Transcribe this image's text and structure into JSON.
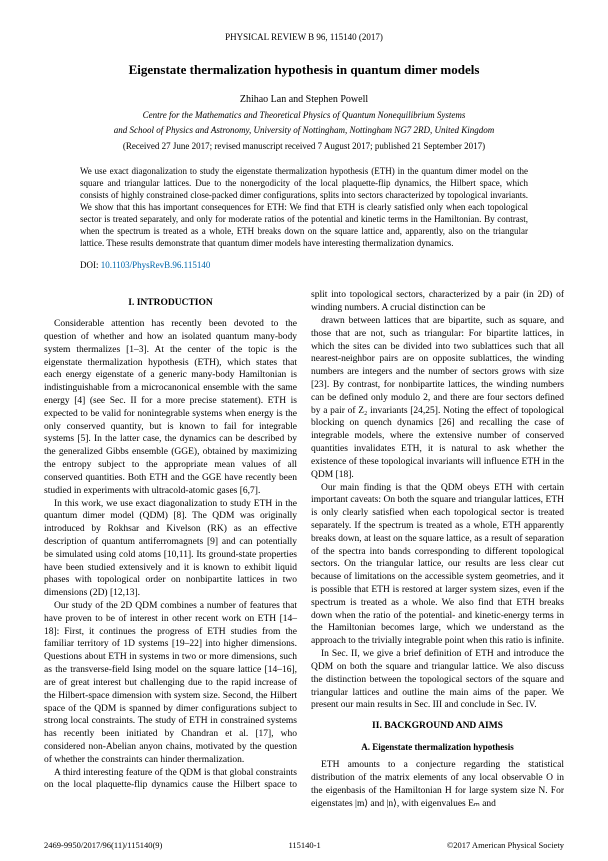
{
  "journal_header": "PHYSICAL REVIEW B 96, 115140 (2017)",
  "title": "Eigenstate thermalization hypothesis in quantum dimer models",
  "authors": "Zhihao Lan and Stephen Powell",
  "affiliation_line1": "Centre for the Mathematics and Theoretical Physics of Quantum Nonequilibrium Systems",
  "affiliation_line2": "and School of Physics and Astronomy, University of Nottingham, Nottingham NG7 2RD, United Kingdom",
  "dates": "(Received 27 June 2017; revised manuscript received 7 August 2017; published 21 September 2017)",
  "abstract": "We use exact diagonalization to study the eigenstate thermalization hypothesis (ETH) in the quantum dimer model on the square and triangular lattices. Due to the nonergodicity of the local plaquette-flip dynamics, the Hilbert space, which consists of highly constrained close-packed dimer configurations, splits into sectors characterized by topological invariants. We show that this has important consequences for ETH: We find that ETH is clearly satisfied only when each topological sector is treated separately, and only for moderate ratios of the potential and kinetic terms in the Hamiltonian. By contrast, when the spectrum is treated as a whole, ETH breaks down on the square lattice and, apparently, also on the triangular lattice. These results demonstrate that quantum dimer models have interesting thermalization dynamics.",
  "doi_label": "DOI:",
  "doi_link": "10.1103/PhysRevB.96.115140",
  "section1_head": "I. INTRODUCTION",
  "para1": "Considerable attention has recently been devoted to the question of whether and how an isolated quantum many-body system thermalizes [1–3]. At the center of the topic is the eigenstate thermalization hypothesis (ETH), which states that each energy eigenstate of a generic many-body Hamiltonian is indistinguishable from a microcanonical ensemble with the same energy [4] (see Sec. II for a more precise statement). ETH is expected to be valid for nonintegrable systems when energy is the only conserved quantity, but is known to fail for integrable systems [5]. In the latter case, the dynamics can be described by the generalized Gibbs ensemble (GGE), obtained by maximizing the entropy subject to the appropriate mean values of all conserved quantities. Both ETH and the GGE have recently been studied in experiments with ultracold-atomic gases [6,7].",
  "para2": "In this work, we use exact diagonalization to study ETH in the quantum dimer model (QDM) [8]. The QDM was originally introduced by Rokhsar and Kivelson (RK) as an effective description of quantum antiferromagnets [9] and can potentially be simulated using cold atoms [10,11]. Its ground-state properties have been studied extensively and it is known to exhibit liquid phases with topological order on nonbipartite lattices in two dimensions (2D) [12,13].",
  "para3": "Our study of the 2D QDM combines a number of features that have proven to be of interest in other recent work on ETH [14–18]: First, it continues the progress of ETH studies from the familiar territory of 1D systems [19–22] into higher dimensions. Questions about ETH in systems in two or more dimensions, such as the transverse-field Ising model on the square lattice [14–16], are of great interest but challenging due to the rapid increase of the Hilbert-space dimension with system size. Second, the Hilbert space of the QDM is spanned by dimer configurations subject to strong local constraints. The study of ETH in constrained systems has recently been initiated by Chandran et al. [17], who considered non-Abelian anyon chains, motivated by the question of whether the constraints can hinder thermalization.",
  "para4": "A third interesting feature of the QDM is that global constraints on the local plaquette-flip dynamics cause the Hilbert space to split into topological sectors, characterized by a pair (in 2D) of winding numbers. A crucial distinction can be",
  "para5": "drawn between lattices that are bipartite, such as square, and those that are not, such as triangular: For bipartite lattices, in which the sites can be divided into two sublattices such that all nearest-neighbor pairs are on opposite sublattices, the winding numbers are integers and the number of sectors grows with size [23]. By contrast, for nonbipartite lattices, the winding numbers can be defined only modulo 2, and there are four sectors defined by a pair of Z₂ invariants [24,25]. Noting the effect of topological blocking on quench dynamics [26] and recalling the case of integrable models, where the extensive number of conserved quantities invalidates ETH, it is natural to ask whether the existence of these topological invariants will influence ETH in the QDM [18].",
  "para6": "Our main finding is that the QDM obeys ETH with certain important caveats: On both the square and triangular lattices, ETH is only clearly satisfied when each topological sector is treated separately. If the spectrum is treated as a whole, ETH apparently breaks down, at least on the square lattice, as a result of separation of the spectra into bands corresponding to different topological sectors. On the triangular lattice, our results are less clear cut because of limitations on the accessible system geometries, and it is possible that ETH is restored at larger system sizes, even if the spectrum is treated as a whole. We also find that ETH breaks down when the ratio of the potential- and kinetic-energy terms in the Hamiltonian becomes large, which we understand as the approach to the trivially integrable point when this ratio is infinite.",
  "para7": "In Sec. II, we give a brief definition of ETH and introduce the QDM on both the square and triangular lattice. We also discuss the distinction between the topological sectors of the square and triangular lattices and outline the main aims of the paper. We present our main results in Sec. III and conclude in Sec. IV.",
  "section2_head": "II. BACKGROUND AND AIMS",
  "subsection2a_head": "A. Eigenstate thermalization hypothesis",
  "para8": "ETH amounts to a conjecture regarding the statistical distribution of the matrix elements of any local observable O in the eigenbasis of the Hamiltonian H for large system size N. For eigenstates |m⟩ and |n⟩, with eigenvalues Eₘ and",
  "footer_left": "2469-9950/2017/96(11)/115140(9)",
  "footer_center": "115140-1",
  "footer_right": "©2017 American Physical Society"
}
